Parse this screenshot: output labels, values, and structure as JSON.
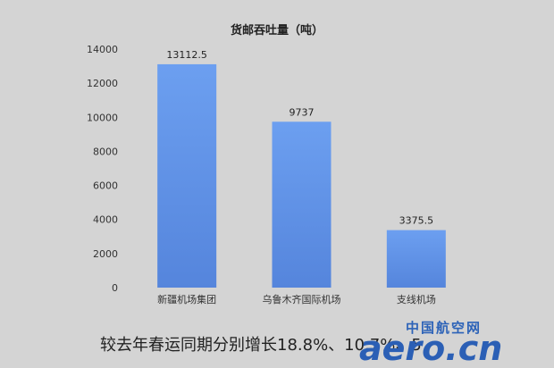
{
  "chart_data": {
    "type": "bar",
    "title": "货邮吞吐量（吨）",
    "categories": [
      "新疆机场集团",
      "乌鲁木齐国际机场",
      "支线机场"
    ],
    "values": [
      13112.5,
      9737,
      3375.5
    ],
    "value_labels": [
      "13112.5",
      "9737",
      "3375.5"
    ],
    "y_ticks": [
      0,
      2000,
      4000,
      6000,
      8000,
      10000,
      12000,
      14000
    ],
    "ylim": [
      0,
      14000
    ],
    "grid": false,
    "legend": "none",
    "bar_color": "#5f93e6"
  },
  "caption": "较去年春运同期分别增长18.8%、10.7%、5",
  "watermark": {
    "cn": "中国航空网",
    "en": "aero.cn"
  }
}
